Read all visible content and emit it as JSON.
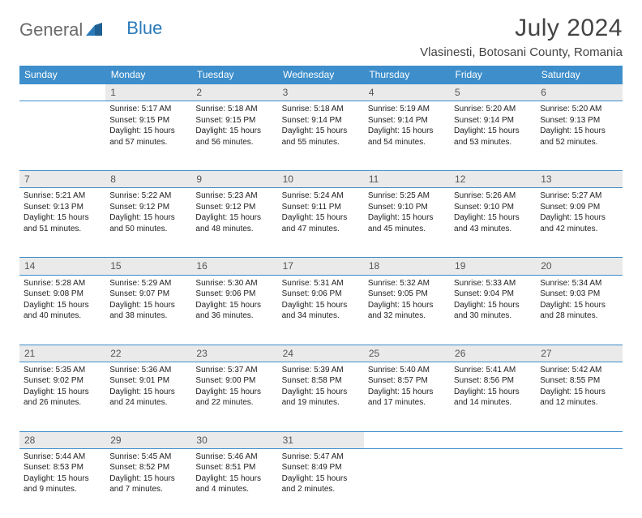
{
  "logo": {
    "text1": "General",
    "text2": "Blue"
  },
  "title": "July 2024",
  "location": "Vlasinesti, Botosani County, Romania",
  "colors": {
    "header_bg": "#3d8ecb",
    "header_text": "#ffffff",
    "daynum_bg": "#eaeaea",
    "border": "#3d8ecb",
    "logo_blue": "#2a7ab9",
    "logo_gray": "#6b6b6b"
  },
  "weekdays": [
    "Sunday",
    "Monday",
    "Tuesday",
    "Wednesday",
    "Thursday",
    "Friday",
    "Saturday"
  ],
  "weeks": [
    {
      "nums": [
        "",
        "1",
        "2",
        "3",
        "4",
        "5",
        "6"
      ],
      "cells": [
        null,
        {
          "sunrise": "Sunrise: 5:17 AM",
          "sunset": "Sunset: 9:15 PM",
          "day1": "Daylight: 15 hours",
          "day2": "and 57 minutes."
        },
        {
          "sunrise": "Sunrise: 5:18 AM",
          "sunset": "Sunset: 9:15 PM",
          "day1": "Daylight: 15 hours",
          "day2": "and 56 minutes."
        },
        {
          "sunrise": "Sunrise: 5:18 AM",
          "sunset": "Sunset: 9:14 PM",
          "day1": "Daylight: 15 hours",
          "day2": "and 55 minutes."
        },
        {
          "sunrise": "Sunrise: 5:19 AM",
          "sunset": "Sunset: 9:14 PM",
          "day1": "Daylight: 15 hours",
          "day2": "and 54 minutes."
        },
        {
          "sunrise": "Sunrise: 5:20 AM",
          "sunset": "Sunset: 9:14 PM",
          "day1": "Daylight: 15 hours",
          "day2": "and 53 minutes."
        },
        {
          "sunrise": "Sunrise: 5:20 AM",
          "sunset": "Sunset: 9:13 PM",
          "day1": "Daylight: 15 hours",
          "day2": "and 52 minutes."
        }
      ]
    },
    {
      "nums": [
        "7",
        "8",
        "9",
        "10",
        "11",
        "12",
        "13"
      ],
      "cells": [
        {
          "sunrise": "Sunrise: 5:21 AM",
          "sunset": "Sunset: 9:13 PM",
          "day1": "Daylight: 15 hours",
          "day2": "and 51 minutes."
        },
        {
          "sunrise": "Sunrise: 5:22 AM",
          "sunset": "Sunset: 9:12 PM",
          "day1": "Daylight: 15 hours",
          "day2": "and 50 minutes."
        },
        {
          "sunrise": "Sunrise: 5:23 AM",
          "sunset": "Sunset: 9:12 PM",
          "day1": "Daylight: 15 hours",
          "day2": "and 48 minutes."
        },
        {
          "sunrise": "Sunrise: 5:24 AM",
          "sunset": "Sunset: 9:11 PM",
          "day1": "Daylight: 15 hours",
          "day2": "and 47 minutes."
        },
        {
          "sunrise": "Sunrise: 5:25 AM",
          "sunset": "Sunset: 9:10 PM",
          "day1": "Daylight: 15 hours",
          "day2": "and 45 minutes."
        },
        {
          "sunrise": "Sunrise: 5:26 AM",
          "sunset": "Sunset: 9:10 PM",
          "day1": "Daylight: 15 hours",
          "day2": "and 43 minutes."
        },
        {
          "sunrise": "Sunrise: 5:27 AM",
          "sunset": "Sunset: 9:09 PM",
          "day1": "Daylight: 15 hours",
          "day2": "and 42 minutes."
        }
      ]
    },
    {
      "nums": [
        "14",
        "15",
        "16",
        "17",
        "18",
        "19",
        "20"
      ],
      "cells": [
        {
          "sunrise": "Sunrise: 5:28 AM",
          "sunset": "Sunset: 9:08 PM",
          "day1": "Daylight: 15 hours",
          "day2": "and 40 minutes."
        },
        {
          "sunrise": "Sunrise: 5:29 AM",
          "sunset": "Sunset: 9:07 PM",
          "day1": "Daylight: 15 hours",
          "day2": "and 38 minutes."
        },
        {
          "sunrise": "Sunrise: 5:30 AM",
          "sunset": "Sunset: 9:06 PM",
          "day1": "Daylight: 15 hours",
          "day2": "and 36 minutes."
        },
        {
          "sunrise": "Sunrise: 5:31 AM",
          "sunset": "Sunset: 9:06 PM",
          "day1": "Daylight: 15 hours",
          "day2": "and 34 minutes."
        },
        {
          "sunrise": "Sunrise: 5:32 AM",
          "sunset": "Sunset: 9:05 PM",
          "day1": "Daylight: 15 hours",
          "day2": "and 32 minutes."
        },
        {
          "sunrise": "Sunrise: 5:33 AM",
          "sunset": "Sunset: 9:04 PM",
          "day1": "Daylight: 15 hours",
          "day2": "and 30 minutes."
        },
        {
          "sunrise": "Sunrise: 5:34 AM",
          "sunset": "Sunset: 9:03 PM",
          "day1": "Daylight: 15 hours",
          "day2": "and 28 minutes."
        }
      ]
    },
    {
      "nums": [
        "21",
        "22",
        "23",
        "24",
        "25",
        "26",
        "27"
      ],
      "cells": [
        {
          "sunrise": "Sunrise: 5:35 AM",
          "sunset": "Sunset: 9:02 PM",
          "day1": "Daylight: 15 hours",
          "day2": "and 26 minutes."
        },
        {
          "sunrise": "Sunrise: 5:36 AM",
          "sunset": "Sunset: 9:01 PM",
          "day1": "Daylight: 15 hours",
          "day2": "and 24 minutes."
        },
        {
          "sunrise": "Sunrise: 5:37 AM",
          "sunset": "Sunset: 9:00 PM",
          "day1": "Daylight: 15 hours",
          "day2": "and 22 minutes."
        },
        {
          "sunrise": "Sunrise: 5:39 AM",
          "sunset": "Sunset: 8:58 PM",
          "day1": "Daylight: 15 hours",
          "day2": "and 19 minutes."
        },
        {
          "sunrise": "Sunrise: 5:40 AM",
          "sunset": "Sunset: 8:57 PM",
          "day1": "Daylight: 15 hours",
          "day2": "and 17 minutes."
        },
        {
          "sunrise": "Sunrise: 5:41 AM",
          "sunset": "Sunset: 8:56 PM",
          "day1": "Daylight: 15 hours",
          "day2": "and 14 minutes."
        },
        {
          "sunrise": "Sunrise: 5:42 AM",
          "sunset": "Sunset: 8:55 PM",
          "day1": "Daylight: 15 hours",
          "day2": "and 12 minutes."
        }
      ]
    },
    {
      "nums": [
        "28",
        "29",
        "30",
        "31",
        "",
        "",
        ""
      ],
      "cells": [
        {
          "sunrise": "Sunrise: 5:44 AM",
          "sunset": "Sunset: 8:53 PM",
          "day1": "Daylight: 15 hours",
          "day2": "and 9 minutes."
        },
        {
          "sunrise": "Sunrise: 5:45 AM",
          "sunset": "Sunset: 8:52 PM",
          "day1": "Daylight: 15 hours",
          "day2": "and 7 minutes."
        },
        {
          "sunrise": "Sunrise: 5:46 AM",
          "sunset": "Sunset: 8:51 PM",
          "day1": "Daylight: 15 hours",
          "day2": "and 4 minutes."
        },
        {
          "sunrise": "Sunrise: 5:47 AM",
          "sunset": "Sunset: 8:49 PM",
          "day1": "Daylight: 15 hours",
          "day2": "and 2 minutes."
        },
        null,
        null,
        null
      ]
    }
  ]
}
